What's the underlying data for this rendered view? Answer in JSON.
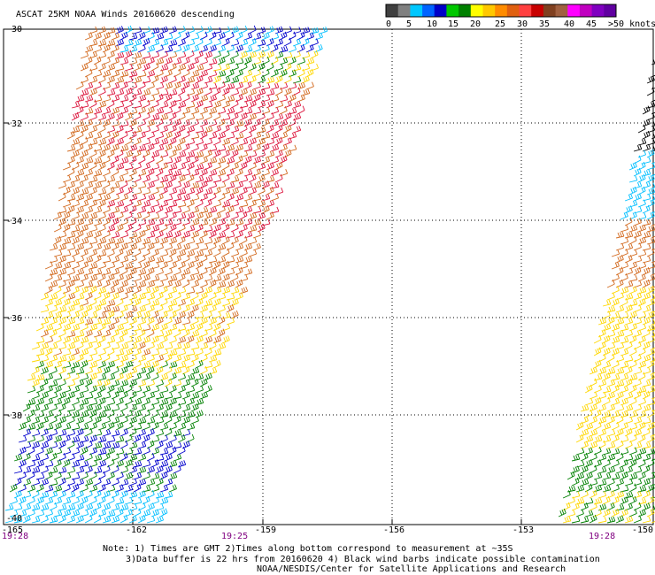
{
  "title": "ASCAT 25KM NOAA Winds 20160620 descending",
  "legend": {
    "unit_label": ">50 knots",
    "ticks": [
      "0",
      "5",
      "10",
      "15",
      "20",
      "25",
      "30",
      "35",
      "40",
      "45"
    ],
    "colors": [
      "#404040",
      "#808080",
      "#00c8ff",
      "#0064ff",
      "#0000c8",
      "#00c800",
      "#008000",
      "#ffff00",
      "#ffc800",
      "#ff8c00",
      "#e06010",
      "#ff4040",
      "#c80000",
      "#804020",
      "#a06040",
      "#ff00ff",
      "#c000c0",
      "#8000c0",
      "#6000a0"
    ]
  },
  "y_labels": [
    "-30",
    "-32",
    "-34",
    "-36",
    "-38",
    "-40"
  ],
  "x_labels": [
    "-165",
    "-162",
    "-159",
    "-156",
    "-153",
    "-150"
  ],
  "times": [
    "19:28",
    "19:25",
    "19:28"
  ],
  "notes": {
    "line1": "Note: 1) Times are GMT 2)Times along bottom correspond to measurement at ~35S",
    "line2": "3)Data buffer is 22 hrs from 20160620 4) Black wind barbs indicate possible contamination",
    "line3": "NOAA/NESDIS/Center for Satellite Applications and Research"
  },
  "swath_colors": {
    "red": "#dc143c",
    "orange": "#d2691e",
    "yellow": "#ffd700",
    "green": "#008000",
    "blue": "#0000cd",
    "cyan": "#00bfff"
  }
}
